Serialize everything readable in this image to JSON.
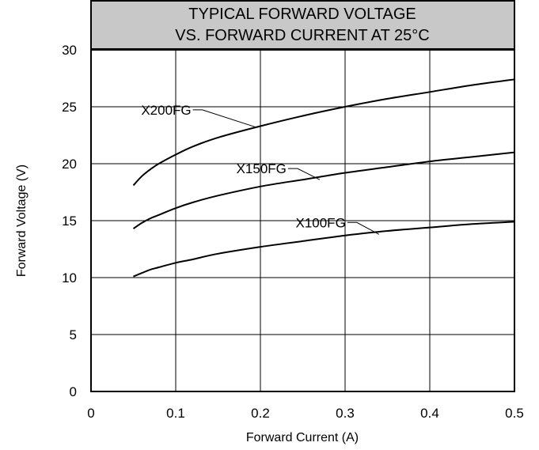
{
  "chart_data": {
    "type": "line",
    "title": [
      "TYPICAL FORWARD VOLTAGE",
      "VS. FORWARD CURRENT AT 25°C"
    ],
    "xlabel": "Forward Current (A)",
    "ylabel": "Forward Voltage (V)",
    "xlim": [
      0,
      0.5
    ],
    "ylim": [
      0,
      30
    ],
    "x_ticks": [
      "0",
      "0.1",
      "0.2",
      "0.3",
      "0.4",
      "0.5"
    ],
    "y_ticks": [
      "0",
      "5",
      "10",
      "15",
      "20",
      "25",
      "30"
    ],
    "grid": true,
    "x": [
      0.05,
      0.06,
      0.07,
      0.08,
      0.1,
      0.12,
      0.15,
      0.2,
      0.25,
      0.3,
      0.35,
      0.4,
      0.45,
      0.5
    ],
    "series": [
      {
        "name": "X200FG",
        "values": [
          18.1,
          18.9,
          19.5,
          20.0,
          20.8,
          21.5,
          22.3,
          23.3,
          24.2,
          25.0,
          25.7,
          26.3,
          26.9,
          27.4
        ],
        "label_anchor": [
          0.195,
          23.2
        ]
      },
      {
        "name": "X150FG",
        "values": [
          14.3,
          14.8,
          15.2,
          15.5,
          16.1,
          16.6,
          17.2,
          18.0,
          18.6,
          19.2,
          19.7,
          20.2,
          20.6,
          21.0
        ],
        "label_anchor": [
          0.27,
          18.6
        ]
      },
      {
        "name": "X100FG",
        "values": [
          10.1,
          10.4,
          10.7,
          10.9,
          11.3,
          11.6,
          12.1,
          12.7,
          13.2,
          13.7,
          14.1,
          14.4,
          14.7,
          14.9
        ],
        "label_anchor": [
          0.34,
          13.8
        ]
      }
    ]
  }
}
